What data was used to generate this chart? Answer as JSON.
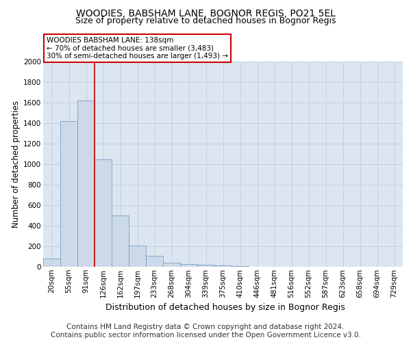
{
  "title": "WOODIES, BABSHAM LANE, BOGNOR REGIS, PO21 5EL",
  "subtitle": "Size of property relative to detached houses in Bognor Regis",
  "xlabel": "Distribution of detached houses by size in Bognor Regis",
  "ylabel": "Number of detached properties",
  "categories": [
    "20sqm",
    "55sqm",
    "91sqm",
    "126sqm",
    "162sqm",
    "197sqm",
    "233sqm",
    "268sqm",
    "304sqm",
    "339sqm",
    "375sqm",
    "410sqm",
    "446sqm",
    "481sqm",
    "516sqm",
    "552sqm",
    "587sqm",
    "623sqm",
    "658sqm",
    "694sqm",
    "729sqm"
  ],
  "values": [
    80,
    1420,
    1620,
    1050,
    500,
    205,
    105,
    40,
    30,
    20,
    15,
    8,
    3,
    2,
    1,
    1,
    0,
    0,
    0,
    0,
    0
  ],
  "bar_color": "#ccd9e8",
  "bar_edge_color": "#7a9ec0",
  "bar_edge_width": 0.6,
  "vline_x_idx": 2.5,
  "vline_color": "#cc0000",
  "annotation_text": "WOODIES BABSHAM LANE: 138sqm\n← 70% of detached houses are smaller (3,483)\n30% of semi-detached houses are larger (1,493) →",
  "annotation_box_color": "#cc0000",
  "ylim": [
    0,
    2000
  ],
  "yticks": [
    0,
    200,
    400,
    600,
    800,
    1000,
    1200,
    1400,
    1600,
    1800,
    2000
  ],
  "grid_color": "#c5cfe0",
  "background_color": "#dce6f0",
  "footer_text": "Contains HM Land Registry data © Crown copyright and database right 2024.\nContains public sector information licensed under the Open Government Licence v3.0.",
  "title_fontsize": 10,
  "subtitle_fontsize": 9,
  "xlabel_fontsize": 9,
  "ylabel_fontsize": 8.5,
  "tick_fontsize": 7.5,
  "annotation_fontsize": 7.5,
  "footer_fontsize": 7.5
}
